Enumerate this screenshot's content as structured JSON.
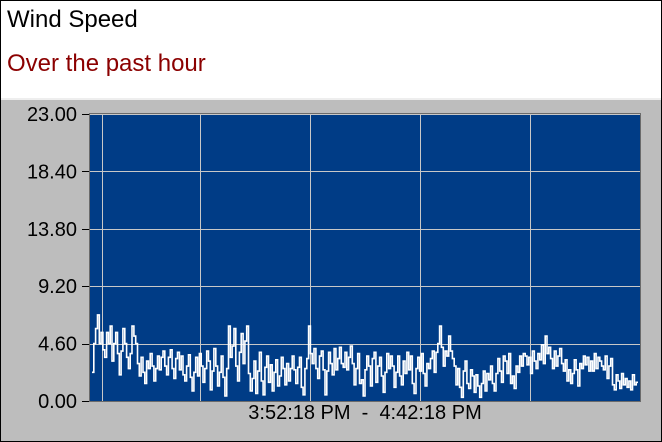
{
  "title": "Wind Speed",
  "subtitle": "Over the past hour",
  "x_range_label": "3:52:18 PM  -  4:42:18 PM",
  "colors": {
    "plot_background": "#003c86",
    "line": "#ffffff",
    "subtitle": "#8b0000"
  },
  "chart_data": {
    "type": "line",
    "title": "",
    "xlabel": "",
    "ylabel": "",
    "x_start": "3:52:18 PM",
    "x_end": "4:42:18 PM",
    "ylim": [
      0,
      23
    ],
    "y_ticks": [
      "0.00",
      "4.60",
      "9.20",
      "13.80",
      "18.40",
      "23.00"
    ],
    "grid": true,
    "series": [
      {
        "values": [
          2.3,
          4.6,
          5.8,
          6.9,
          4.6,
          5.5,
          4.1,
          3.5,
          5.5,
          4.6,
          6.0,
          3.2,
          4.6,
          5.5,
          3.8,
          2.1,
          4.0,
          5.8,
          4.6,
          3.5,
          2.6,
          3.8,
          6.0,
          5.2,
          4.6,
          3.0,
          2.0,
          3.5,
          2.3,
          1.4,
          3.2,
          2.6,
          3.8,
          2.8,
          1.6,
          2.6,
          3.6,
          2.5,
          3.5,
          4.0,
          2.8,
          2.1,
          3.5,
          4.1,
          2.6,
          1.8,
          3.4,
          3.9,
          2.5,
          3.6,
          2.1,
          1.6,
          2.8,
          3.7,
          1.9,
          0.8,
          2.3,
          3.5,
          2.0,
          3.8,
          2.8,
          1.5,
          2.6,
          4.0,
          3.2,
          0.9,
          2.4,
          4.2,
          2.8,
          1.2,
          2.3,
          3.6,
          1.9,
          0.4,
          2.6,
          6.0,
          3.5,
          4.4,
          5.8,
          2.8,
          1.6,
          3.9,
          5.4,
          3.0,
          4.8,
          6.0,
          2.2,
          0.8,
          1.8,
          3.2,
          0.6,
          2.4,
          3.9,
          1.6,
          0.5,
          2.7,
          3.6,
          1.5,
          2.9,
          0.8,
          2.3,
          3.3,
          1.2,
          2.0,
          3.5,
          2.6,
          1.3,
          3.0,
          1.6,
          2.6,
          3.6,
          2.5,
          1.4,
          2.7,
          3.5,
          1.1,
          0.5,
          2.6,
          3.4,
          6.0,
          3.8,
          3.0,
          4.2,
          2.6,
          1.8,
          3.6,
          4.0,
          2.5,
          0.5,
          2.4,
          3.9,
          3.0,
          2.1,
          4.2,
          2.5,
          3.4,
          4.3,
          3.0,
          2.7,
          3.9,
          2.5,
          3.5,
          4.4,
          3.0,
          1.3,
          2.6,
          3.8,
          1.4,
          1.7,
          0.4,
          2.5,
          3.6,
          2.8,
          1.2,
          3.4,
          3.9,
          1.5,
          2.8,
          3.5,
          2.0,
          0.7,
          2.3,
          3.8,
          2.6,
          3.6,
          2.8,
          1.1,
          2.3,
          3.6,
          2.0,
          1.3,
          3.2,
          2.2,
          3.9,
          2.5,
          3.6,
          1.4,
          0.6,
          2.6,
          3.5,
          2.4,
          3.8,
          2.2,
          1.2,
          3.0,
          2.6,
          3.4,
          4.0,
          2.3,
          3.9,
          4.6,
          6.0,
          4.3,
          2.8,
          4.0,
          3.6,
          5.2,
          4.0,
          3.4,
          2.8,
          1.3,
          2.6,
          1.1,
          0.3,
          2.4,
          3.2,
          1.4,
          1.0,
          2.5,
          2.0,
          0.7,
          2.1,
          1.2,
          0.3,
          1.4,
          2.4,
          0.8,
          2.2,
          1.7,
          2.8,
          1.4,
          0.8,
          2.2,
          3.4,
          2.4,
          1.5,
          3.6,
          3.2,
          2.2,
          3.8,
          1.4,
          2.0,
          1.0,
          2.8,
          2.3,
          3.6,
          2.8,
          3.8,
          3.6,
          2.9,
          3.5,
          2.2,
          4.0,
          3.2,
          2.6,
          3.8,
          3.3,
          4.5,
          3.0,
          5.2,
          3.8,
          4.3,
          3.4,
          2.6,
          4.0,
          2.8,
          3.6,
          4.2,
          3.0,
          2.4,
          3.3,
          1.6,
          2.5,
          1.4,
          2.2,
          3.3,
          2.5,
          1.2,
          3.0,
          2.6,
          3.6,
          2.9,
          3.5,
          2.4,
          3.2,
          2.4,
          3.8,
          2.6,
          3.5,
          3.2,
          2.8,
          2.5,
          3.6,
          1.8,
          2.8,
          3.4,
          1.3,
          0.9,
          2.1,
          1.6,
          1.0,
          2.2,
          1.3,
          1.8,
          1.1,
          1.6,
          0.9,
          2.1,
          1.3,
          1.5
        ]
      }
    ]
  }
}
